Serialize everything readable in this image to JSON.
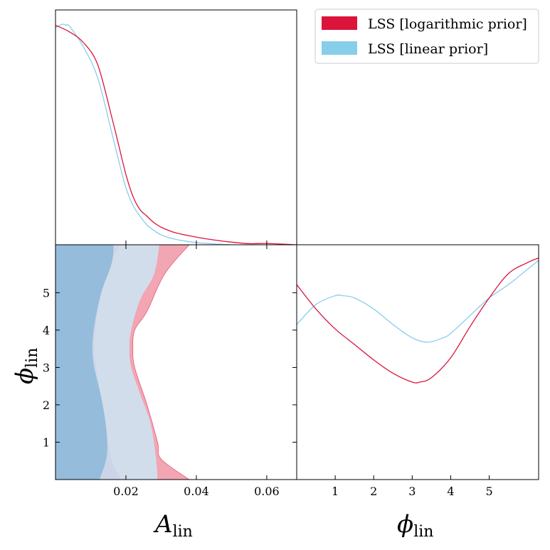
{
  "colors": {
    "log": "#DC143C",
    "lin": "#87CEEB",
    "log_fill_outer": "#F2A5B3",
    "log_fill_inner": "#D2DDEB",
    "lin_fill_outer": "#D2DDEB",
    "lin_fill_inner": "#95BCDB",
    "overlap_outer": "#CCD5E8"
  },
  "legend": {
    "entries": [
      {
        "label": "LSS [logarithmic prior]",
        "color": "#DC143C"
      },
      {
        "label": "LSS [linear prior]",
        "color": "#87CEEB"
      }
    ]
  },
  "axes": {
    "A_lin": {
      "label_main": "A",
      "label_sub": "lin",
      "range": [
        0.0,
        0.0685
      ],
      "ticks": [
        0.02,
        0.04,
        0.06
      ],
      "tick_labels": [
        "0.02",
        "0.04",
        "0.06"
      ]
    },
    "phi_lin": {
      "label_main": "ϕ",
      "label_sub": "lin",
      "range": [
        0.0,
        6.283
      ],
      "ticks": [
        1,
        2,
        3,
        4,
        5
      ],
      "tick_labels": [
        "1",
        "2",
        "3",
        "4",
        "5"
      ]
    }
  },
  "chart_data": [
    {
      "type": "line",
      "panel": "marginal A_lin",
      "xlabel": "A_lin",
      "xlim": [
        0.0,
        0.0685
      ],
      "ylim": [
        0,
        1.07
      ],
      "series": [
        {
          "name": "LSS [logarithmic prior]",
          "x": [
            0.0,
            0.004,
            0.008,
            0.012,
            0.016,
            0.018,
            0.02,
            0.022,
            0.024,
            0.026,
            0.028,
            0.03,
            0.034,
            0.04,
            0.045,
            0.05,
            0.055,
            0.06,
            0.0685
          ],
          "y": [
            1.0,
            0.97,
            0.92,
            0.82,
            0.58,
            0.45,
            0.32,
            0.22,
            0.16,
            0.13,
            0.1,
            0.08,
            0.055,
            0.035,
            0.022,
            0.012,
            0.005,
            0.006,
            0.0
          ]
        },
        {
          "name": "LSS [linear prior]",
          "x": [
            0.0,
            0.002,
            0.003,
            0.004,
            0.008,
            0.012,
            0.016,
            0.018,
            0.02,
            0.022,
            0.024,
            0.026,
            0.028,
            0.03,
            0.034,
            0.04,
            0.045,
            0.05
          ],
          "y": [
            0.99,
            1.005,
            1.0,
            0.995,
            0.9,
            0.76,
            0.51,
            0.38,
            0.26,
            0.18,
            0.13,
            0.09,
            0.065,
            0.045,
            0.025,
            0.01,
            0.004,
            0.0
          ]
        }
      ]
    },
    {
      "type": "contour",
      "panel": "A_lin vs phi_lin",
      "xlabel": "A_lin",
      "ylabel": "phi_lin",
      "xlim": [
        0.0,
        0.0685
      ],
      "ylim": [
        0.0,
        6.283
      ],
      "contours": [
        {
          "series": "LSS [logarithmic prior]",
          "level": "95%",
          "x": [
            0.038,
            0.03,
            0.029,
            0.026,
            0.0225,
            0.022,
            0.0225,
            0.026,
            0.031,
            0.038
          ],
          "y": [
            0.0,
            0.55,
            1.0,
            2.0,
            3.0,
            3.5,
            4.0,
            4.5,
            5.5,
            6.283
          ]
        },
        {
          "series": "LSS [logarithmic prior]",
          "level": "68%",
          "x": [
            0.0185,
            0.016,
            0.0145,
            0.013,
            0.0115,
            0.011,
            0.0115,
            0.013,
            0.0155,
            0.0185
          ],
          "y": [
            0.0,
            0.5,
            1.2,
            2.0,
            3.0,
            3.5,
            4.2,
            5.0,
            5.8,
            6.283
          ]
        },
        {
          "series": "LSS [linear prior]",
          "level": "95%",
          "x": [
            0.029,
            0.0285,
            0.027,
            0.024,
            0.0215,
            0.021,
            0.0215,
            0.024,
            0.028,
            0.0295
          ],
          "y": [
            0.0,
            0.6,
            1.5,
            2.3,
            3.0,
            3.5,
            4.0,
            4.8,
            5.5,
            6.283
          ]
        },
        {
          "series": "LSS [linear prior]",
          "level": "68%",
          "x": [
            0.0125,
            0.0145,
            0.0145,
            0.013,
            0.011,
            0.0105,
            0.011,
            0.013,
            0.016,
            0.0165
          ],
          "y": [
            0.0,
            0.6,
            1.3,
            2.2,
            3.0,
            3.5,
            4.1,
            5.0,
            5.8,
            6.283
          ]
        }
      ]
    },
    {
      "type": "line",
      "panel": "marginal phi_lin",
      "xlabel": "phi_lin",
      "xlim": [
        0.0,
        6.283
      ],
      "ylim": [
        0,
        1.06
      ],
      "series": [
        {
          "name": "LSS [logarithmic prior]",
          "x": [
            0.0,
            0.5,
            1.0,
            1.5,
            2.0,
            2.5,
            3.0,
            3.2,
            3.5,
            4.0,
            4.5,
            5.0,
            5.5,
            6.0,
            6.283
          ],
          "y": [
            0.88,
            0.77,
            0.68,
            0.61,
            0.54,
            0.48,
            0.44,
            0.44,
            0.46,
            0.55,
            0.69,
            0.82,
            0.93,
            0.98,
            1.0
          ]
        },
        {
          "name": "LSS [linear prior]",
          "x": [
            0.0,
            0.5,
            1.0,
            1.2,
            1.5,
            2.0,
            2.5,
            3.0,
            3.4,
            3.8,
            4.0,
            4.5,
            5.0,
            5.5,
            6.0,
            6.283
          ],
          "y": [
            0.7,
            0.79,
            0.83,
            0.83,
            0.82,
            0.77,
            0.7,
            0.64,
            0.62,
            0.64,
            0.66,
            0.74,
            0.82,
            0.88,
            0.95,
            0.99
          ]
        }
      ]
    }
  ]
}
